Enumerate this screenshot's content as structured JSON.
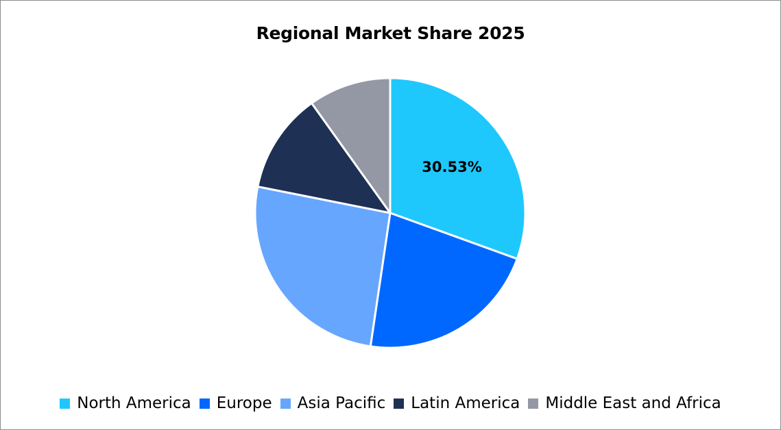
{
  "chart_data": {
    "type": "pie",
    "title": "Regional Market Share 2025",
    "categories": [
      "North America",
      "Europe",
      "Asia Pacific",
      "Latin America",
      "Middle East and Africa"
    ],
    "values": [
      30.53,
      21.8,
      25.8,
      12.0,
      9.87
    ],
    "colors": [
      "#1ec8fc",
      "#0068ff",
      "#67a6ff",
      "#1e3154",
      "#9398a4"
    ],
    "data_labels": [
      {
        "category": "North America",
        "text": "30.53%"
      }
    ],
    "legend_position": "bottom",
    "start_angle_deg": 0,
    "direction": "clockwise"
  },
  "title": "Regional Market Share 2025",
  "label_na": "30.53%",
  "legend": [
    {
      "label": "North America",
      "color": "#1ec8fc"
    },
    {
      "label": "Europe",
      "color": "#0068ff"
    },
    {
      "label": "Asia Pacific",
      "color": "#67a6ff"
    },
    {
      "label": "Latin America",
      "color": "#1e3154"
    },
    {
      "label": "Middle East and Africa",
      "color": "#9398a4"
    }
  ]
}
